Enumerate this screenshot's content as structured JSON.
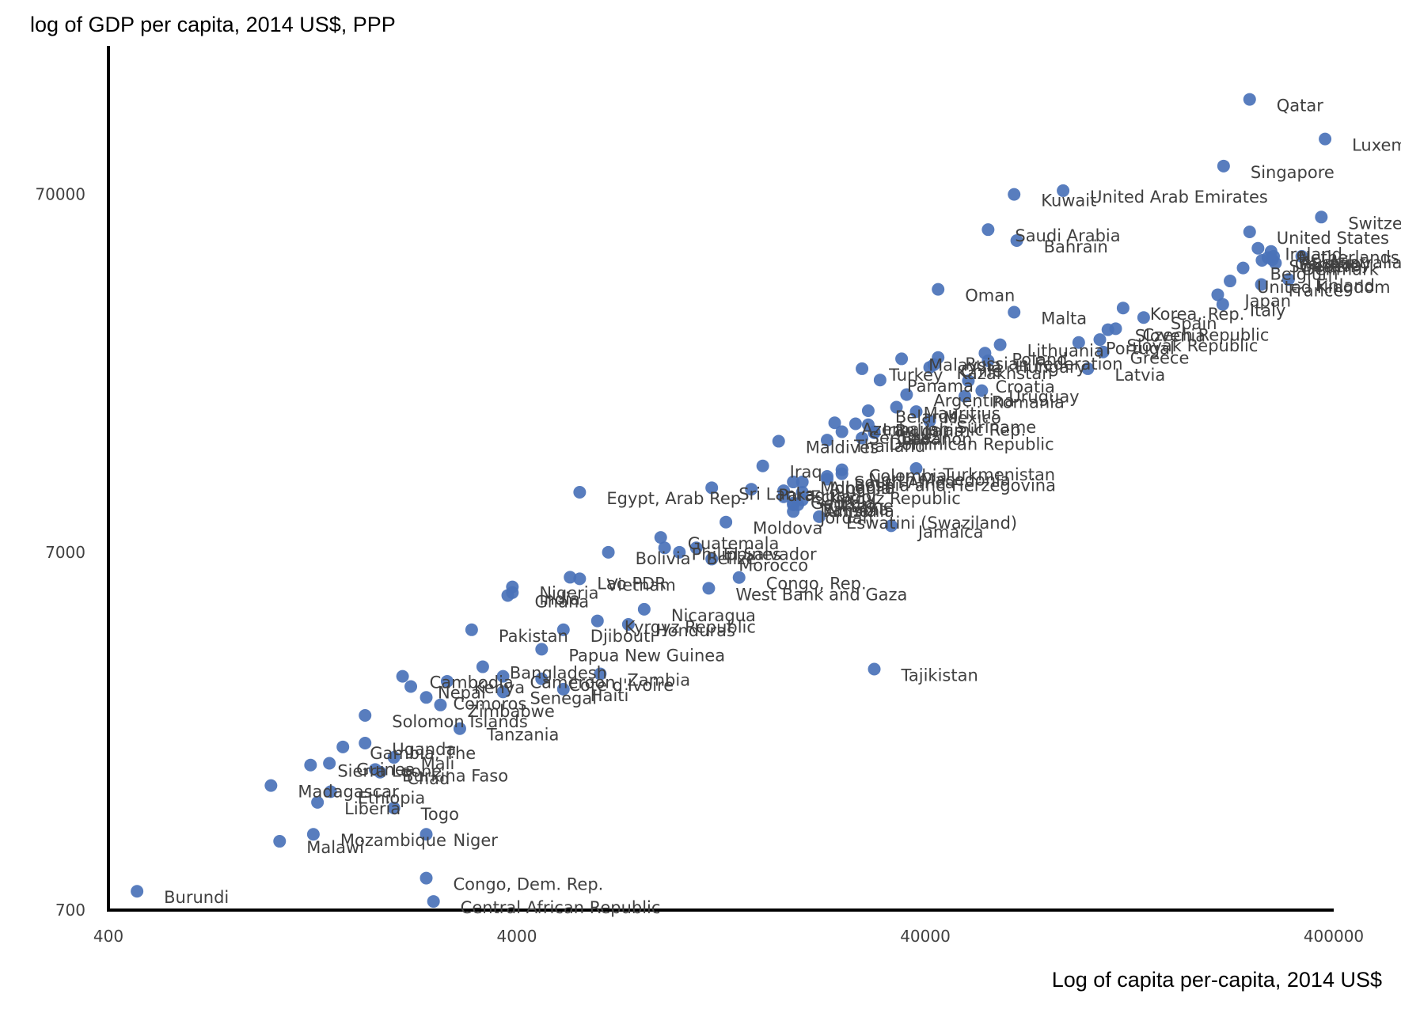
{
  "chart_data": {
    "type": "scatter",
    "title": "",
    "ylabel": "log of GDP per capita, 2014 US$, PPP",
    "xlabel": "Log of capita per-capita, 2014 US$",
    "x_scale": "log",
    "y_scale": "log",
    "xlim": [
      400,
      400000
    ],
    "ylim": [
      700,
      182000
    ],
    "x_ticks": [
      400,
      4000,
      40000,
      400000
    ],
    "y_ticks": [
      700,
      7000,
      70000
    ],
    "x_tick_labels": [
      "400",
      "4000",
      "40000",
      "400000"
    ],
    "y_tick_labels": [
      "700",
      "7000",
      "70000"
    ],
    "grid": false,
    "legend": "none",
    "colors": {
      "points": "#4a72b8",
      "labels": "#404040",
      "axes": "#000000"
    },
    "points": [
      {
        "label": "Qatar",
        "x": 249000,
        "y": 129000
      },
      {
        "label": "Luxembourg",
        "x": 381000,
        "y": 100000
      },
      {
        "label": "Singapore",
        "x": 215000,
        "y": 84000
      },
      {
        "label": "United Arab Emirates",
        "x": 87000,
        "y": 71700
      },
      {
        "label": "Kuwait",
        "x": 66000,
        "y": 70000
      },
      {
        "label": "Switzerland",
        "x": 373000,
        "y": 60500
      },
      {
        "label": "Saudi Arabia",
        "x": 57000,
        "y": 55800
      },
      {
        "label": "Bahrain",
        "x": 67000,
        "y": 52000
      },
      {
        "label": "United States",
        "x": 249000,
        "y": 55000
      },
      {
        "label": "Ireland",
        "x": 261000,
        "y": 49500
      },
      {
        "label": "Netherlands",
        "x": 281000,
        "y": 48500
      },
      {
        "label": "Australia",
        "x": 334000,
        "y": 47000
      },
      {
        "label": "Austria",
        "x": 285000,
        "y": 47000
      },
      {
        "label": "Germany",
        "x": 276000,
        "y": 46600
      },
      {
        "label": "Sweden",
        "x": 267000,
        "y": 45800
      },
      {
        "label": "Denmark",
        "x": 288000,
        "y": 45000
      },
      {
        "label": "Belgium",
        "x": 240000,
        "y": 43600
      },
      {
        "label": "Canada",
        "x": 283000,
        "y": 46000
      },
      {
        "label": "Finland",
        "x": 310000,
        "y": 40500
      },
      {
        "label": "United Kingdom",
        "x": 223000,
        "y": 40100
      },
      {
        "label": "France",
        "x": 266000,
        "y": 39200
      },
      {
        "label": "Japan",
        "x": 208000,
        "y": 36700
      },
      {
        "label": "Oman",
        "x": 43000,
        "y": 38000
      },
      {
        "label": "Malta",
        "x": 66000,
        "y": 32800
      },
      {
        "label": "Korea, Rep.",
        "x": 122000,
        "y": 33700
      },
      {
        "label": "Italy",
        "x": 214000,
        "y": 34500
      },
      {
        "label": "Spain",
        "x": 137000,
        "y": 31700
      },
      {
        "label": "Slovenia",
        "x": 112000,
        "y": 29300
      },
      {
        "label": "Portugal",
        "x": 95000,
        "y": 27000
      },
      {
        "label": "Slovak Republic",
        "x": 107000,
        "y": 27500
      },
      {
        "label": "Czech Republic",
        "x": 117000,
        "y": 29500
      },
      {
        "label": "Lithuania",
        "x": 61000,
        "y": 26600
      },
      {
        "label": "Greece",
        "x": 109000,
        "y": 25400
      },
      {
        "label": "Latvia",
        "x": 100000,
        "y": 22800
      },
      {
        "label": "Poland",
        "x": 56000,
        "y": 25200
      },
      {
        "label": "Hungary",
        "x": 57000,
        "y": 24000
      },
      {
        "label": "Russian Federation",
        "x": 43000,
        "y": 24500
      },
      {
        "label": "Kazakhstan",
        "x": 41000,
        "y": 23000
      },
      {
        "label": "Malaysia",
        "x": 35000,
        "y": 24300
      },
      {
        "label": "Turkey",
        "x": 28000,
        "y": 22800
      },
      {
        "label": "Panama",
        "x": 31000,
        "y": 21200
      },
      {
        "label": "Chile",
        "x": 42000,
        "y": 23400
      },
      {
        "label": "Croatia",
        "x": 51000,
        "y": 21100
      },
      {
        "label": "Romania",
        "x": 50000,
        "y": 19100
      },
      {
        "label": "Uruguay",
        "x": 55000,
        "y": 19800
      },
      {
        "label": "Argentina",
        "x": 36000,
        "y": 19300
      },
      {
        "label": "Belarus",
        "x": 29000,
        "y": 17400
      },
      {
        "label": "Mauritius",
        "x": 34000,
        "y": 17800
      },
      {
        "label": "Mexico",
        "x": 38000,
        "y": 17300
      },
      {
        "label": "Suriname",
        "x": 41000,
        "y": 16300
      },
      {
        "label": "Azerbaijan",
        "x": 24000,
        "y": 16100
      },
      {
        "label": "Bulgaria",
        "x": 29000,
        "y": 15900
      },
      {
        "label": "Maldives",
        "x": 17500,
        "y": 14300
      },
      {
        "label": "Thailand",
        "x": 23000,
        "y": 14400
      },
      {
        "label": "Dominican Republic",
        "x": 28000,
        "y": 14600
      },
      {
        "label": "Brazil",
        "x": 30000,
        "y": 15200
      },
      {
        "label": "Serbia",
        "x": 25000,
        "y": 15200
      },
      {
        "label": "Iran, Islamic Rep.",
        "x": 27000,
        "y": 16000
      },
      {
        "label": "Lebanon",
        "x": 30000,
        "y": 15100
      },
      {
        "label": "Iraq",
        "x": 16000,
        "y": 12200
      },
      {
        "label": "North Macedonia",
        "x": 25000,
        "y": 11600
      },
      {
        "label": "Turkmenistan",
        "x": 38000,
        "y": 12000
      },
      {
        "label": "Colombia",
        "x": 25000,
        "y": 11900
      },
      {
        "label": "South Africa",
        "x": 23000,
        "y": 11400
      },
      {
        "label": "Bosnia and Herzegovina",
        "x": 23000,
        "y": 11200
      },
      {
        "label": "Egypt, Arab Rep.",
        "x": 5700,
        "y": 10300
      },
      {
        "label": "Sri Lanka",
        "x": 12000,
        "y": 10600
      },
      {
        "label": "Paraguay",
        "x": 15000,
        "y": 10500
      },
      {
        "label": "Albania",
        "x": 20000,
        "y": 11000
      },
      {
        "label": "Ecuador",
        "x": 18000,
        "y": 10400
      },
      {
        "label": "Mongolia",
        "x": 19000,
        "y": 11000
      },
      {
        "label": "Georgia",
        "x": 18000,
        "y": 10000
      },
      {
        "label": "Ukraine",
        "x": 20000,
        "y": 9800
      },
      {
        "label": "Kyrgyz Republic",
        "x": 20000,
        "y": 10300
      },
      {
        "label": "Namibia",
        "x": 19000,
        "y": 9600
      },
      {
        "label": "Tunisia",
        "x": 19000,
        "y": 9500
      },
      {
        "label": "Armenia",
        "x": 19500,
        "y": 9500
      },
      {
        "label": "Moldova",
        "x": 13000,
        "y": 8500
      },
      {
        "label": "Eswatini (Swaziland)",
        "x": 22000,
        "y": 8800
      },
      {
        "label": "Jordan",
        "x": 19000,
        "y": 9100
      },
      {
        "label": "Jamaica",
        "x": 33000,
        "y": 8300
      },
      {
        "label": "Guatemala",
        "x": 9000,
        "y": 7700
      },
      {
        "label": "Belize",
        "x": 10000,
        "y": 7000
      },
      {
        "label": "El Salvador",
        "x": 11000,
        "y": 7200
      },
      {
        "label": "Bolivia",
        "x": 6700,
        "y": 7000
      },
      {
        "label": "Philippines",
        "x": 9200,
        "y": 7200
      },
      {
        "label": "Morocco",
        "x": 12000,
        "y": 6700
      },
      {
        "label": "Congo, Rep.",
        "x": 14000,
        "y": 5950
      },
      {
        "label": "West Bank and Gaza",
        "x": 11800,
        "y": 5550
      },
      {
        "label": "Lao PDR",
        "x": 5400,
        "y": 5960
      },
      {
        "label": "Vietnam",
        "x": 5700,
        "y": 5900
      },
      {
        "label": "Nigeria",
        "x": 3900,
        "y": 5600
      },
      {
        "label": "Ghana",
        "x": 3800,
        "y": 5300
      },
      {
        "label": "India",
        "x": 3900,
        "y": 5400
      },
      {
        "label": "Nicaragua",
        "x": 8200,
        "y": 4850
      },
      {
        "label": "Honduras",
        "x": 7500,
        "y": 4400
      },
      {
        "label": "Pakistan",
        "x": 3100,
        "y": 4250
      },
      {
        "label": "Djibouti",
        "x": 5200,
        "y": 4250
      },
      {
        "label": "Kyrgyz Republic",
        "x": 6300,
        "y": 4500
      },
      {
        "label": "Papua New Guinea",
        "x": 4600,
        "y": 3750
      },
      {
        "label": "Zambia",
        "x": 6400,
        "y": 3200
      },
      {
        "label": "Tajikistan",
        "x": 30000,
        "y": 3300
      },
      {
        "label": "Bangladesh",
        "x": 3300,
        "y": 3350
      },
      {
        "label": "Cambodia",
        "x": 2100,
        "y": 3150
      },
      {
        "label": "Cameroon",
        "x": 3700,
        "y": 3150
      },
      {
        "label": "Cote d'Ivoire",
        "x": 4600,
        "y": 3100
      },
      {
        "label": "Kenya",
        "x": 2700,
        "y": 3050
      },
      {
        "label": "Nepal",
        "x": 2200,
        "y": 2950
      },
      {
        "label": "Senegal",
        "x": 3700,
        "y": 2850
      },
      {
        "label": "Haiti",
        "x": 5200,
        "y": 2900
      },
      {
        "label": "Comoros",
        "x": 2400,
        "y": 2750
      },
      {
        "label": "Zimbabwe",
        "x": 2600,
        "y": 2620
      },
      {
        "label": "Solomon Islands",
        "x": 1700,
        "y": 2450
      },
      {
        "label": "Tanzania",
        "x": 2900,
        "y": 2250
      },
      {
        "label": "Uganda",
        "x": 1700,
        "y": 2050
      },
      {
        "label": "Gambia, The",
        "x": 1500,
        "y": 2000
      },
      {
        "label": "Mali",
        "x": 2000,
        "y": 1870
      },
      {
        "label": "Sierra Leone",
        "x": 1250,
        "y": 1780
      },
      {
        "label": "Guinea",
        "x": 1390,
        "y": 1800
      },
      {
        "label": "Burkina Faso",
        "x": 1800,
        "y": 1730
      },
      {
        "label": "Chad",
        "x": 1850,
        "y": 1700
      },
      {
        "label": "Madagascar",
        "x": 1000,
        "y": 1560
      },
      {
        "label": "Ethiopia",
        "x": 1400,
        "y": 1500
      },
      {
        "label": "Liberia",
        "x": 1300,
        "y": 1400
      },
      {
        "label": "Togo",
        "x": 2000,
        "y": 1350
      },
      {
        "label": "Mozambique",
        "x": 1270,
        "y": 1140
      },
      {
        "label": "Niger",
        "x": 2400,
        "y": 1140
      },
      {
        "label": "Malawi",
        "x": 1050,
        "y": 1090
      },
      {
        "label": "Congo, Dem. Rep.",
        "x": 2400,
        "y": 860
      },
      {
        "label": "Central African Republic",
        "x": 2500,
        "y": 740
      },
      {
        "label": "Burundi",
        "x": 470,
        "y": 790
      }
    ]
  }
}
